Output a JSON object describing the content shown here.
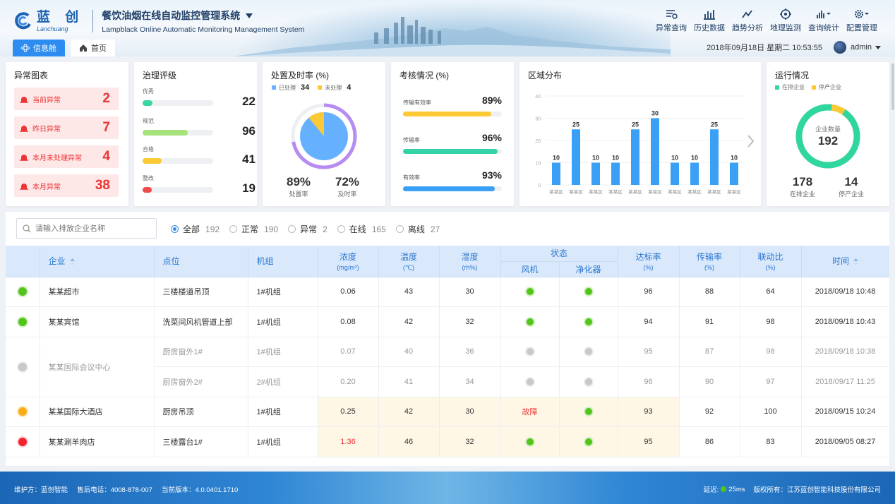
{
  "brand": {
    "cn": "蓝 创",
    "en": "Lanchuang",
    "title": "餐饮油烟在线自动监控管理系统",
    "subtitle": "Lampblack Online Automatic Monitoring Management System"
  },
  "nav": [
    {
      "label": "异常查询",
      "icon": "alert-list-icon"
    },
    {
      "label": "历史数据",
      "icon": "bar-chart-icon"
    },
    {
      "label": "趋势分析",
      "icon": "trend-icon"
    },
    {
      "label": "地理监测",
      "icon": "target-icon"
    },
    {
      "label": "查询统计",
      "icon": "signal-icon"
    },
    {
      "label": "配置管理",
      "icon": "gear-icon"
    }
  ],
  "datetime": "2018年09月18日  星期二   10:53:55",
  "user": "admin",
  "tabs": {
    "info": "信息舱",
    "home": "首页"
  },
  "abnormal": {
    "title": "异常图表",
    "items": [
      {
        "label": "当前异常",
        "value": "2"
      },
      {
        "label": "昨日异常",
        "value": "7"
      },
      {
        "label": "本月未处理异常",
        "value": "4"
      },
      {
        "label": "本月异常",
        "value": "38"
      }
    ]
  },
  "governance": {
    "title": "治理评级",
    "items": [
      {
        "label": "优秀",
        "value": "22",
        "fraction": 0.14,
        "color": "#3ad6a2"
      },
      {
        "label": "规范",
        "value": "96",
        "fraction": 0.64,
        "color": "#a8e27a"
      },
      {
        "label": "合格",
        "value": "41",
        "fraction": 0.27,
        "color": "#fac935"
      },
      {
        "label": "整改",
        "value": "19",
        "fraction": 0.13,
        "color": "#f04c4c"
      }
    ]
  },
  "disposal": {
    "title": "处置及时率 (%)",
    "legend_done": "已处理",
    "done": "34",
    "legend_pending": "未处理",
    "pending": "4",
    "rate1": "89%",
    "rate1_label": "处置率",
    "rate2": "72%",
    "rate2_label": "及时率",
    "pie_done_fraction": 0.89,
    "ring_fraction": 0.72,
    "colors": {
      "done": "#66b1ff",
      "pending": "#fac935",
      "ring": "#b68cf0"
    }
  },
  "assessment": {
    "title": "考核情况 (%)",
    "items": [
      {
        "label": "传输有效率",
        "value": "89%",
        "fraction": 0.89,
        "color": "#fac935"
      },
      {
        "label": "传输率",
        "value": "96%",
        "fraction": 0.96,
        "color": "#32d3a6"
      },
      {
        "label": "有效率",
        "value": "93%",
        "fraction": 0.93,
        "color": "#3aa0f5"
      }
    ]
  },
  "region": {
    "title": "区域分布"
  },
  "operation": {
    "title": "运行情况",
    "legend_on": "在排企业",
    "legend_off": "停产企业",
    "center_label": "企业数量",
    "total": "192",
    "on": "178",
    "on_label": "在排企业",
    "off": "14",
    "off_label": "停产企业",
    "on_fraction": 0.927,
    "colors": {
      "on": "#2fd6a0",
      "off": "#fac935"
    }
  },
  "search": {
    "placeholder": "请输入排放企业名称"
  },
  "filters": [
    {
      "label": "全部",
      "count": "192",
      "checked": true
    },
    {
      "label": "正常",
      "count": "190",
      "checked": false
    },
    {
      "label": "异常",
      "count": "2",
      "checked": false
    },
    {
      "label": "在线",
      "count": "165",
      "checked": false
    },
    {
      "label": "离线",
      "count": "27",
      "checked": false
    }
  ],
  "table": {
    "h": {
      "company": "企业",
      "point": "点位",
      "unit": "机组",
      "conc": "浓度",
      "conc_u": "(mg/m³)",
      "temp": "温度",
      "temp_u": "(℃)",
      "hum": "湿度",
      "hum_u": "(rh%)",
      "status": "状态",
      "fan": "风机",
      "purifier": "净化器",
      "std": "达标率",
      "std_u": "(%)",
      "trans": "传输率",
      "trans_u": "(%)",
      "link": "联动比",
      "link_u": "(%)",
      "time": "时间"
    },
    "rows": [
      {
        "company": "某某超市",
        "point": "三楼楼道吊顶",
        "unit": "1#机组",
        "conc": "0.06",
        "temp": "43",
        "hum": "30",
        "std": "96",
        "trans": "88",
        "link": "64",
        "time": "2018/09/18 10:48"
      },
      {
        "company": "某某宾馆",
        "point": "洗菜间风机管道上部",
        "unit": "1#机组",
        "conc": "0.08",
        "temp": "42",
        "hum": "32",
        "std": "94",
        "trans": "91",
        "link": "98",
        "time": "2018/09/18 10:43"
      },
      {
        "company": "某某国际会议中心",
        "point": "厨房窗外1#",
        "unit": "1#机组",
        "conc": "0.07",
        "temp": "40",
        "hum": "36",
        "std": "95",
        "trans": "87",
        "link": "98",
        "time": "2018/09/18 10:38"
      },
      {
        "point": "厨房窗外2#",
        "unit": "2#机组",
        "conc": "0.20",
        "temp": "41",
        "hum": "34",
        "std": "96",
        "trans": "90",
        "link": "97",
        "time": "2018/09/17 11:25"
      },
      {
        "company": "某某国际大酒店",
        "point": "厨房吊顶",
        "unit": "1#机组",
        "conc": "0.25",
        "temp": "42",
        "hum": "30",
        "fan": "故障",
        "std": "93",
        "trans": "92",
        "link": "100",
        "time": "2018/09/15 10:24"
      },
      {
        "company": "某某涮羊肉店",
        "point": "三楼露台1#",
        "unit": "1#机组",
        "conc": "1.36",
        "temp": "46",
        "hum": "32",
        "std": "95",
        "trans": "86",
        "link": "83",
        "time": "2018/09/05 08:27"
      }
    ]
  },
  "footer": {
    "left": "维护方：蓝创智能     售后电话：4008-878-007     当前版本：4.0.0401.1710",
    "delay_label": "延迟:",
    "delay": "25ms",
    "copyright": "版权所有：江苏蓝创智能科技股份有限公司"
  },
  "chart_data": {
    "type": "bar",
    "title": "区域分布",
    "categories": [
      "某某区",
      "某某区",
      "某某区",
      "某某区",
      "某某区",
      "某某区",
      "某某区",
      "某某区",
      "某某区",
      "某某区"
    ],
    "values": [
      10,
      25,
      10,
      10,
      25,
      30,
      10,
      10,
      25,
      10
    ],
    "ylim": [
      0,
      40
    ],
    "yticks": [
      0,
      10,
      20,
      30,
      40
    ],
    "color": "#3aa0f5",
    "grid": true,
    "xlabel": "",
    "ylabel": ""
  }
}
